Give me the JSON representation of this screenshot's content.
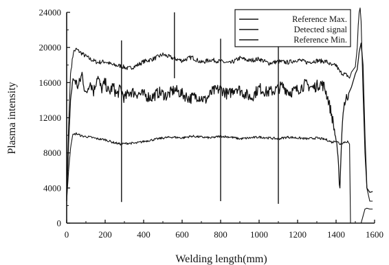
{
  "chart_data": {
    "type": "line",
    "title": "",
    "xlabel": "Welding length(mm)",
    "ylabel": "Plasma intensity",
    "xlim": [
      0,
      1600
    ],
    "ylim": [
      0,
      24000
    ],
    "x_ticks": [
      0,
      200,
      400,
      600,
      800,
      1000,
      1200,
      1400,
      1600
    ],
    "y_ticks": [
      0,
      4000,
      8000,
      12000,
      16000,
      20000,
      24000
    ],
    "grid": false,
    "legend_position": "top-right",
    "legend": [
      "Reference Max.",
      "Detected signal",
      "Reference Min."
    ],
    "series": [
      {
        "name": "Reference Max.",
        "x": [
          0,
          10,
          20,
          35,
          50,
          80,
          120,
          160,
          200,
          240,
          280,
          320,
          360,
          400,
          450,
          500,
          550,
          600,
          650,
          700,
          750,
          800,
          850,
          900,
          950,
          1000,
          1050,
          1100,
          1150,
          1200,
          1250,
          1300,
          1350,
          1380,
          1400,
          1420,
          1440,
          1460,
          1470,
          1480,
          1500,
          1510,
          1515,
          1520,
          1525,
          1530,
          1540,
          1550,
          1560,
          1575,
          1590
        ],
        "y": [
          3000,
          11000,
          17000,
          19500,
          19800,
          19300,
          18700,
          18300,
          18400,
          18000,
          17900,
          17600,
          17900,
          18400,
          18700,
          19200,
          18800,
          18500,
          18900,
          18300,
          18600,
          18400,
          18200,
          18800,
          18500,
          18700,
          18200,
          18400,
          18300,
          18600,
          18300,
          18500,
          18400,
          17900,
          18000,
          17200,
          17000,
          16800,
          16500,
          17200,
          17800,
          20000,
          22500,
          24000,
          24500,
          23000,
          15000,
          8000,
          4000,
          2500,
          2500
        ]
      },
      {
        "name": "Detected signal",
        "x": [
          0,
          10,
          20,
          30,
          40,
          60,
          80,
          100,
          120,
          140,
          160,
          180,
          200,
          220,
          240,
          260,
          280,
          300,
          330,
          360,
          400,
          440,
          480,
          520,
          560,
          600,
          640,
          680,
          720,
          760,
          800,
          840,
          880,
          920,
          960,
          1000,
          1040,
          1080,
          1120,
          1160,
          1200,
          1240,
          1280,
          1320,
          1340,
          1360,
          1380,
          1400,
          1410,
          1420,
          1430,
          1440,
          1460,
          1480,
          1500,
          1510,
          1520,
          1530,
          1540,
          1550,
          1560,
          1575,
          1590
        ],
        "y": [
          2500,
          9000,
          14000,
          16000,
          16400,
          15500,
          17000,
          14500,
          16200,
          15000,
          16800,
          15200,
          16000,
          14800,
          15600,
          14600,
          15300,
          14200,
          15000,
          14800,
          14600,
          14300,
          14900,
          14500,
          15200,
          14700,
          14200,
          14500,
          14000,
          15000,
          15300,
          14600,
          15500,
          14800,
          14300,
          15400,
          14900,
          15100,
          15600,
          14900,
          15200,
          15800,
          15400,
          15900,
          15500,
          14000,
          12000,
          9500,
          7000,
          4000,
          10500,
          13500,
          14500,
          15500,
          17000,
          17500,
          19500,
          20500,
          18000,
          10000,
          4000,
          3500,
          3600
        ]
      },
      {
        "name": "Reference Min.",
        "x": [
          0,
          10,
          20,
          30,
          50,
          80,
          120,
          160,
          200,
          240,
          280,
          320,
          360,
          400,
          450,
          500,
          550,
          600,
          650,
          700,
          750,
          800,
          850,
          900,
          950,
          1000,
          1050,
          1100,
          1150,
          1200,
          1250,
          1300,
          1350,
          1380,
          1400,
          1420,
          1440,
          1460,
          1470,
          1475,
          1480,
          1500,
          1520,
          1530,
          1540,
          1550,
          1560,
          1575,
          1590
        ],
        "y": [
          2500,
          6000,
          8500,
          10000,
          10200,
          9900,
          9800,
          9600,
          9500,
          9200,
          9000,
          9100,
          9100,
          9300,
          9500,
          9700,
          9800,
          9700,
          9900,
          9800,
          9700,
          9900,
          9800,
          9600,
          9700,
          9800,
          9700,
          9600,
          9800,
          9700,
          9600,
          9700,
          9500,
          9200,
          9400,
          9000,
          9200,
          9300,
          9000,
          0,
          0,
          0,
          0,
          0,
          800,
          1600,
          1700,
          1600,
          1600
        ]
      }
    ],
    "spikes": [
      {
        "x": 285,
        "y_top": 20800,
        "y_bottom": 2400
      },
      {
        "x": 560,
        "y_top": 24000,
        "y_bottom": 16500
      },
      {
        "x": 800,
        "y_top": 21000,
        "y_bottom": 2500
      },
      {
        "x": 1100,
        "y_top": 21500,
        "y_bottom": 2200
      }
    ]
  },
  "style": {
    "line_color": "#111111",
    "background": "#ffffff"
  }
}
